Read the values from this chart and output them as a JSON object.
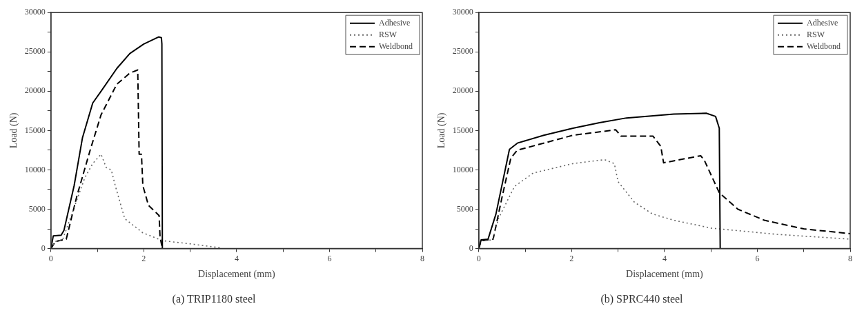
{
  "chart_data": [
    {
      "type": "line",
      "title": "(a) TRIP1180 steel",
      "xlabel": "Displacement (mm)",
      "ylabel": "Load (N)",
      "xlim": [
        0,
        8
      ],
      "ylim": [
        0,
        30000
      ],
      "xticks": [
        0,
        {
          "value": 1,
          "label": null
        },
        2,
        {
          "value": 3,
          "label": null
        },
        4,
        {
          "value": 5,
          "label": null
        },
        6,
        {
          "value": 7,
          "label": null
        },
        8
      ],
      "yticks": [
        0,
        {
          "value": 2500,
          "label": null
        },
        5000,
        {
          "value": 7500,
          "label": null
        },
        10000,
        {
          "value": 12500,
          "label": null
        },
        15000,
        {
          "value": 17500,
          "label": null
        },
        20000,
        {
          "value": 22500,
          "label": null
        },
        25000,
        {
          "value": 27500,
          "label": null
        },
        30000
      ],
      "legend": "top right",
      "series": [
        {
          "name": "Adhesive",
          "color": "#000000",
          "line_style": "solid",
          "x": [
            0,
            0.05,
            0.22,
            0.28,
            0.5,
            0.68,
            0.9,
            1.08,
            1.42,
            1.7,
            2.0,
            2.32,
            2.38,
            2.39,
            2.4
          ],
          "values": [
            0,
            1600,
            1700,
            2300,
            8000,
            14100,
            18500,
            20000,
            22900,
            24800,
            26000,
            26900,
            26800,
            26000,
            0
          ]
        },
        {
          "name": "RSW",
          "color": "#666666",
          "line_style": "dotted",
          "x": [
            0,
            0.1,
            0.25,
            0.45,
            0.73,
            0.9,
            1.08,
            1.19,
            1.3,
            1.39,
            1.59,
            1.98,
            2.4,
            3.0,
            3.64
          ],
          "values": [
            0,
            900,
            1100,
            4400,
            9000,
            10800,
            12000,
            10300,
            10000,
            7900,
            3800,
            2000,
            1000,
            600,
            100
          ]
        },
        {
          "name": "Weldbond",
          "color": "#000000",
          "line_style": "dashed",
          "x": [
            0,
            0.1,
            0.33,
            0.56,
            0.85,
            1.08,
            1.42,
            1.7,
            1.87,
            1.9,
            1.95,
            1.98,
            2.1,
            2.33,
            2.35,
            2.4
          ],
          "values": [
            0,
            900,
            1200,
            6700,
            12600,
            17000,
            20900,
            22300,
            22700,
            12000,
            12000,
            8000,
            5500,
            4200,
            1500,
            0
          ]
        }
      ]
    },
    {
      "type": "line",
      "title": "(b) SPRC440 steel",
      "xlabel": "Displacement (mm)",
      "ylabel": "Load (N)",
      "xlim": [
        0,
        8
      ],
      "ylim": [
        0,
        30000
      ],
      "xticks": [
        0,
        {
          "value": 1,
          "label": null
        },
        2,
        {
          "value": 3,
          "label": null
        },
        4,
        {
          "value": 5,
          "label": null
        },
        6,
        {
          "value": 7,
          "label": null
        },
        8
      ],
      "yticks": [
        0,
        {
          "value": 2500,
          "label": null
        },
        5000,
        {
          "value": 7500,
          "label": null
        },
        10000,
        {
          "value": 12500,
          "label": null
        },
        15000,
        {
          "value": 17500,
          "label": null
        },
        20000,
        {
          "value": 22500,
          "label": null
        },
        25000,
        {
          "value": 27500,
          "label": null
        },
        30000
      ],
      "legend": "top right",
      "series": [
        {
          "name": "Adhesive",
          "color": "#000000",
          "line_style": "solid",
          "x": [
            0,
            0.05,
            0.2,
            0.37,
            0.66,
            0.83,
            1.4,
            2.03,
            2.6,
            3.18,
            4.2,
            4.9,
            5.1,
            5.18,
            5.2
          ],
          "values": [
            0,
            1100,
            1200,
            4400,
            12600,
            13400,
            14400,
            15300,
            16000,
            16600,
            17100,
            17200,
            16800,
            15300,
            0
          ]
        },
        {
          "name": "RSW",
          "color": "#666666",
          "line_style": "dotted",
          "x": [
            0,
            0.05,
            0.3,
            0.43,
            0.77,
            1.17,
            2.03,
            2.71,
            2.92,
            3.0,
            3.35,
            3.74,
            4.2,
            5.0,
            6.43,
            8.0
          ],
          "values": [
            0,
            1000,
            1100,
            3900,
            7900,
            9600,
            10800,
            11300,
            10800,
            8500,
            5900,
            4400,
            3600,
            2600,
            1800,
            1200
          ]
        },
        {
          "name": "Weldbond",
          "color": "#000000",
          "line_style": "dashed",
          "x": [
            0,
            0.05,
            0.31,
            0.5,
            0.69,
            0.83,
            2.03,
            2.95,
            3.06,
            3.75,
            3.92,
            3.98,
            4.78,
            4.86,
            5.18,
            5.58,
            6.15,
            7.0,
            8.0
          ],
          "values": [
            0,
            1000,
            1200,
            6500,
            11500,
            12500,
            14400,
            15100,
            14300,
            14300,
            13000,
            10900,
            11800,
            11200,
            7100,
            5000,
            3600,
            2500,
            1900
          ]
        }
      ]
    }
  ]
}
